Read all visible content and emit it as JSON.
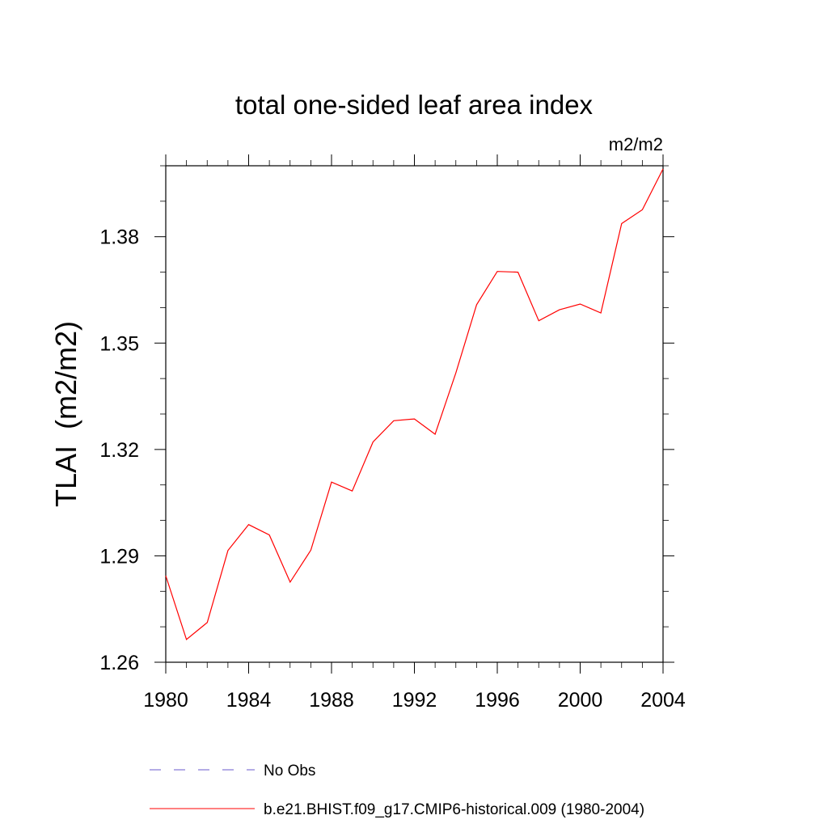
{
  "chart_data": {
    "type": "line",
    "title": "total one-sided leaf area index",
    "units": "m2/m2",
    "ylabel": "TLAI  (m2/m2)",
    "xlabel": "",
    "xlim": [
      1980,
      2004
    ],
    "ylim": [
      1.26,
      1.4
    ],
    "xticks": [
      "1980",
      "1984",
      "1988",
      "1992",
      "1996",
      "2000",
      "2004"
    ],
    "yticks": [
      "1.26",
      "1.29",
      "1.32",
      "1.35",
      "1.38"
    ],
    "series": [
      {
        "name": "b.e21.BHIST.f09_g17.CMIP6-historical.009 (1980-2004)",
        "color": "#ff0000",
        "style": "solid",
        "x": [
          1980,
          1981,
          1982,
          1983,
          1984,
          1985,
          1986,
          1987,
          1988,
          1989,
          1990,
          1991,
          1992,
          1993,
          1994,
          1995,
          1996,
          1997,
          1998,
          1999,
          2000,
          2001,
          2002,
          2003,
          2004
        ],
        "y": [
          1.2844,
          1.2664,
          1.2712,
          1.2915,
          1.2988,
          1.2959,
          1.2826,
          1.2916,
          1.3108,
          1.3083,
          1.3221,
          1.3281,
          1.3286,
          1.3243,
          1.3416,
          1.3608,
          1.3702,
          1.37,
          1.3563,
          1.3594,
          1.361,
          1.3585,
          1.3837,
          1.3876,
          1.3991
        ]
      }
    ],
    "legend": [
      {
        "label": "No Obs",
        "color": "#6a5acd",
        "style": "dashed"
      },
      {
        "label": "b.e21.BHIST.f09_g17.CMIP6-historical.009 (1980-2004)",
        "color": "#ff0000",
        "style": "solid"
      }
    ],
    "grid": false,
    "legend_position": "bottom"
  }
}
